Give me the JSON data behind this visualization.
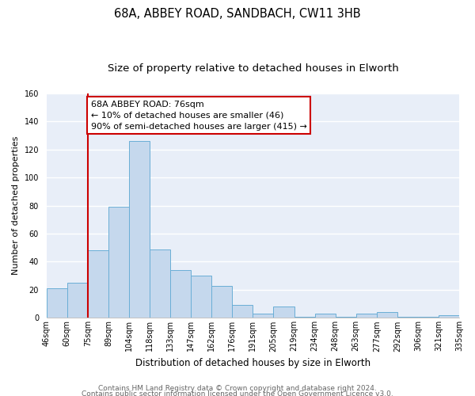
{
  "title": "68A, ABBEY ROAD, SANDBACH, CW11 3HB",
  "subtitle": "Size of property relative to detached houses in Elworth",
  "xlabel": "Distribution of detached houses by size in Elworth",
  "ylabel": "Number of detached properties",
  "bin_labels": [
    "46sqm",
    "60sqm",
    "75sqm",
    "89sqm",
    "104sqm",
    "118sqm",
    "133sqm",
    "147sqm",
    "162sqm",
    "176sqm",
    "191sqm",
    "205sqm",
    "219sqm",
    "234sqm",
    "248sqm",
    "263sqm",
    "277sqm",
    "292sqm",
    "306sqm",
    "321sqm",
    "335sqm"
  ],
  "bar_values": [
    21,
    25,
    48,
    79,
    126,
    49,
    34,
    30,
    23,
    9,
    3,
    8,
    1,
    3,
    1,
    3,
    4,
    1,
    1,
    2
  ],
  "bar_color": "#c5d8ed",
  "bar_edge_color": "#6aaed6",
  "highlight_bin_index": 2,
  "highlight_color": "#cc0000",
  "ylim": [
    0,
    160
  ],
  "yticks": [
    0,
    20,
    40,
    60,
    80,
    100,
    120,
    140,
    160
  ],
  "annotation_title": "68A ABBEY ROAD: 76sqm",
  "annotation_line1": "← 10% of detached houses are smaller (46)",
  "annotation_line2": "90% of semi-detached houses are larger (415) →",
  "annotation_box_color": "#ffffff",
  "annotation_box_edge": "#cc0000",
  "footer_line1": "Contains HM Land Registry data © Crown copyright and database right 2024.",
  "footer_line2": "Contains public sector information licensed under the Open Government Licence v3.0.",
  "bg_color": "#e8eef8",
  "grid_color": "#ffffff",
  "title_fontsize": 10.5,
  "subtitle_fontsize": 9.5,
  "xlabel_fontsize": 8.5,
  "ylabel_fontsize": 8,
  "tick_fontsize": 7,
  "footer_fontsize": 6.5,
  "annotation_fontsize": 8
}
